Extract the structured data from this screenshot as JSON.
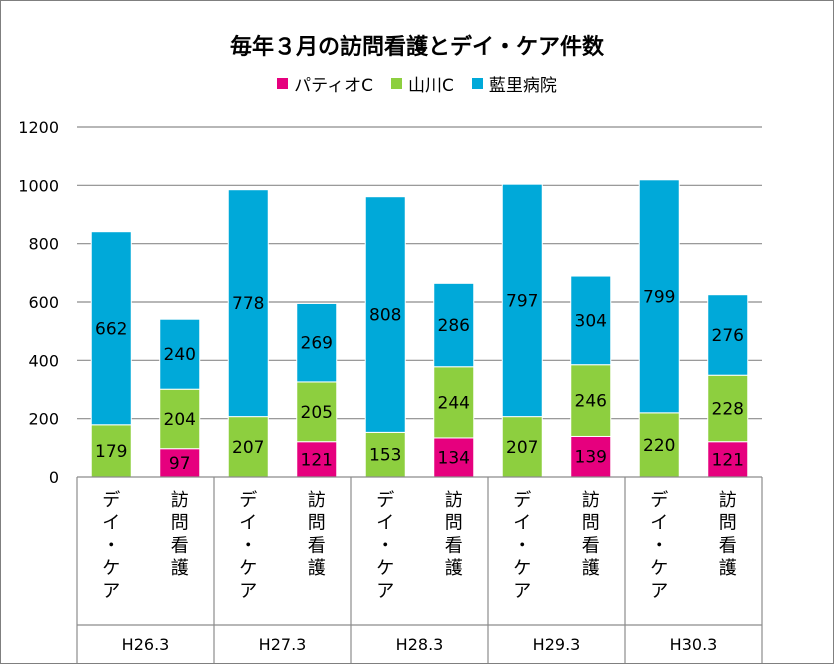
{
  "chart_data": {
    "type": "bar",
    "stacked": true,
    "title": "毎年３月の訪問看護とデイ・ケア件数",
    "groups": [
      "H26.3",
      "H27.3",
      "H28.3",
      "H29.3",
      "H30.3"
    ],
    "categories": [
      "デイ・ケア",
      "訪問看護"
    ],
    "series": [
      {
        "name": "パティオC",
        "color": "#e6007e",
        "values": [
          [
            null,
            97
          ],
          [
            null,
            121
          ],
          [
            null,
            134
          ],
          [
            null,
            139
          ],
          [
            null,
            121
          ]
        ]
      },
      {
        "name": "山川C",
        "color": "#8dcf3f",
        "values": [
          [
            179,
            204
          ],
          [
            207,
            205
          ],
          [
            153,
            244
          ],
          [
            207,
            246
          ],
          [
            220,
            228
          ]
        ]
      },
      {
        "name": "藍里病院",
        "color": "#00a9d9",
        "values": [
          [
            662,
            240
          ],
          [
            778,
            269
          ],
          [
            808,
            286
          ],
          [
            797,
            304
          ],
          [
            799,
            276
          ]
        ]
      }
    ],
    "ylim": [
      0,
      1200
    ],
    "yticks": [
      0,
      200,
      400,
      600,
      800,
      1000,
      1200
    ],
    "grid": true,
    "legend_position": "top"
  }
}
